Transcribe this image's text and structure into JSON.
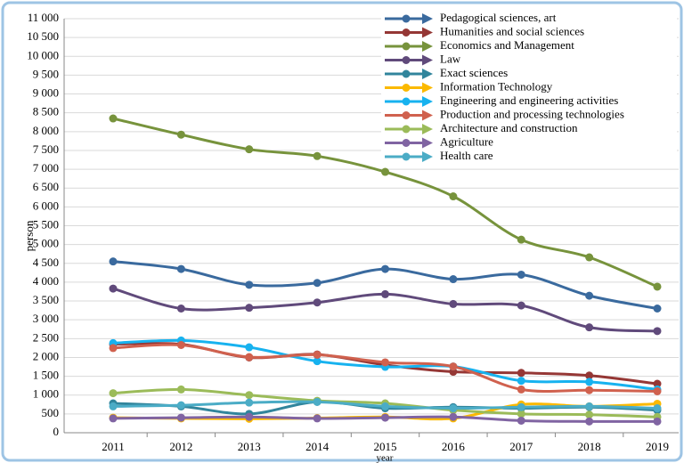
{
  "chart_data": {
    "type": "line",
    "x_label": "year",
    "y_label": "person",
    "categories": [
      "2011",
      "2012",
      "2013",
      "2014",
      "2015",
      "2016",
      "2017",
      "2018",
      "2019"
    ],
    "ylim": [
      0,
      11000
    ],
    "yticks": [
      0,
      500,
      {
        "value": 1000,
        "label": "1 000"
      },
      {
        "value": 1500,
        "label": "1 500"
      },
      {
        "value": 2000,
        "label": "2 000"
      },
      {
        "value": 2500,
        "label": "2 500"
      },
      {
        "value": 3000,
        "label": "3 000"
      },
      {
        "value": 3500,
        "label": "3 500"
      },
      {
        "value": 4000,
        "label": "4 000"
      },
      {
        "value": 4500,
        "label": "4 500"
      },
      {
        "value": 5000,
        "label": "5 000"
      },
      {
        "value": 5500,
        "label": "5 500"
      },
      {
        "value": 6000,
        "label": "6 000"
      },
      {
        "value": 6500,
        "label": "6 500"
      },
      {
        "value": 7000,
        "label": "7 000"
      },
      {
        "value": 7500,
        "label": "7 500"
      },
      {
        "value": 8000,
        "label": "8 000"
      },
      {
        "value": 8500,
        "label": "8 500"
      },
      {
        "value": 9000,
        "label": "9 000"
      },
      {
        "value": 9500,
        "label": "9 500"
      },
      {
        "value": 10000,
        "label": "10 000"
      },
      {
        "value": 10500,
        "label": "10 500"
      },
      {
        "value": 11000,
        "label": "11 000"
      }
    ],
    "grid": true,
    "legend": "top-right",
    "series": [
      {
        "name": "Pedagogical sciences, art",
        "color": "#3a6a9e",
        "values": [
          4550,
          4350,
          3930,
          3980,
          4350,
          4080,
          4200,
          3640,
          3300
        ]
      },
      {
        "name": "Humanities and social sciences",
        "color": "#953735",
        "values": [
          2350,
          2350,
          2000,
          2080,
          1800,
          1620,
          1590,
          1520,
          1300
        ]
      },
      {
        "name": "Economics and Management",
        "color": "#77933c",
        "values": [
          8350,
          7920,
          7530,
          7350,
          6930,
          6280,
          5130,
          4660,
          3880
        ]
      },
      {
        "name": "Law",
        "color": "#604a7b",
        "values": [
          3830,
          3300,
          3320,
          3460,
          3680,
          3420,
          3380,
          2800,
          2700
        ]
      },
      {
        "name": "Exact sciences",
        "color": "#31859c",
        "values": [
          780,
          700,
          500,
          820,
          650,
          680,
          650,
          680,
          600
        ]
      },
      {
        "name": "Information Technology",
        "color": "#fbb900",
        "values": [
          400,
          380,
          370,
          390,
          420,
          380,
          750,
          700,
          770
        ]
      },
      {
        "name": "Engineering and engineering activities",
        "color": "#17b2ef",
        "values": [
          2380,
          2450,
          2270,
          1900,
          1750,
          1760,
          1380,
          1350,
          1150
        ]
      },
      {
        "name": "Production and processing technologies",
        "color": "#d0614e",
        "values": [
          2250,
          2330,
          2010,
          2070,
          1870,
          1760,
          1150,
          1130,
          1100
        ]
      },
      {
        "name": "Architecture and construction",
        "color": "#9bbb59",
        "values": [
          1050,
          1150,
          1000,
          850,
          780,
          600,
          500,
          480,
          420
        ]
      },
      {
        "name": "Agriculture",
        "color": "#8064a2",
        "values": [
          380,
          400,
          420,
          380,
          400,
          420,
          320,
          300,
          300
        ]
      },
      {
        "name": "Health care",
        "color": "#4bacc6",
        "values": [
          700,
          730,
          800,
          820,
          700,
          650,
          680,
          700,
          650
        ]
      }
    ]
  }
}
